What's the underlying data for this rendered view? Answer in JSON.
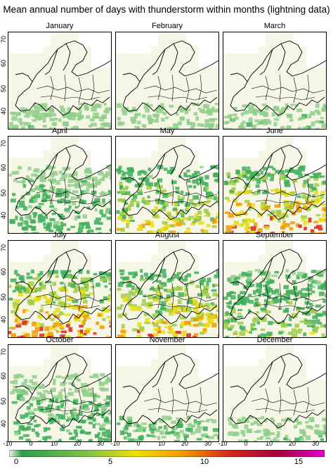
{
  "title": "Mean annual number of days with thunderstorm within months (lightning data)",
  "months": [
    {
      "name": "January",
      "intensity": 0.18
    },
    {
      "name": "February",
      "intensity": 0.18
    },
    {
      "name": "March",
      "intensity": 0.2
    },
    {
      "name": "April",
      "intensity": 0.35
    },
    {
      "name": "May",
      "intensity": 0.7
    },
    {
      "name": "June",
      "intensity": 0.9
    },
    {
      "name": "July",
      "intensity": 0.95
    },
    {
      "name": "August",
      "intensity": 0.85
    },
    {
      "name": "September",
      "intensity": 0.55
    },
    {
      "name": "October",
      "intensity": 0.35
    },
    {
      "name": "November",
      "intensity": 0.25
    },
    {
      "name": "December",
      "intensity": 0.2
    }
  ],
  "axes": {
    "y_ticks": [
      "70",
      "60",
      "50",
      "40"
    ],
    "x_ticks": [
      "-10",
      "0",
      "10",
      "20",
      "30"
    ]
  },
  "colorbar": {
    "ticks": [
      "0",
      "5",
      "10",
      "15"
    ],
    "colors": [
      "#f6f6e6",
      "#2e9e4a",
      "#7fc24a",
      "#f0e000",
      "#f29a00",
      "#d7261c",
      "#a8003a",
      "#e800c8"
    ]
  }
}
